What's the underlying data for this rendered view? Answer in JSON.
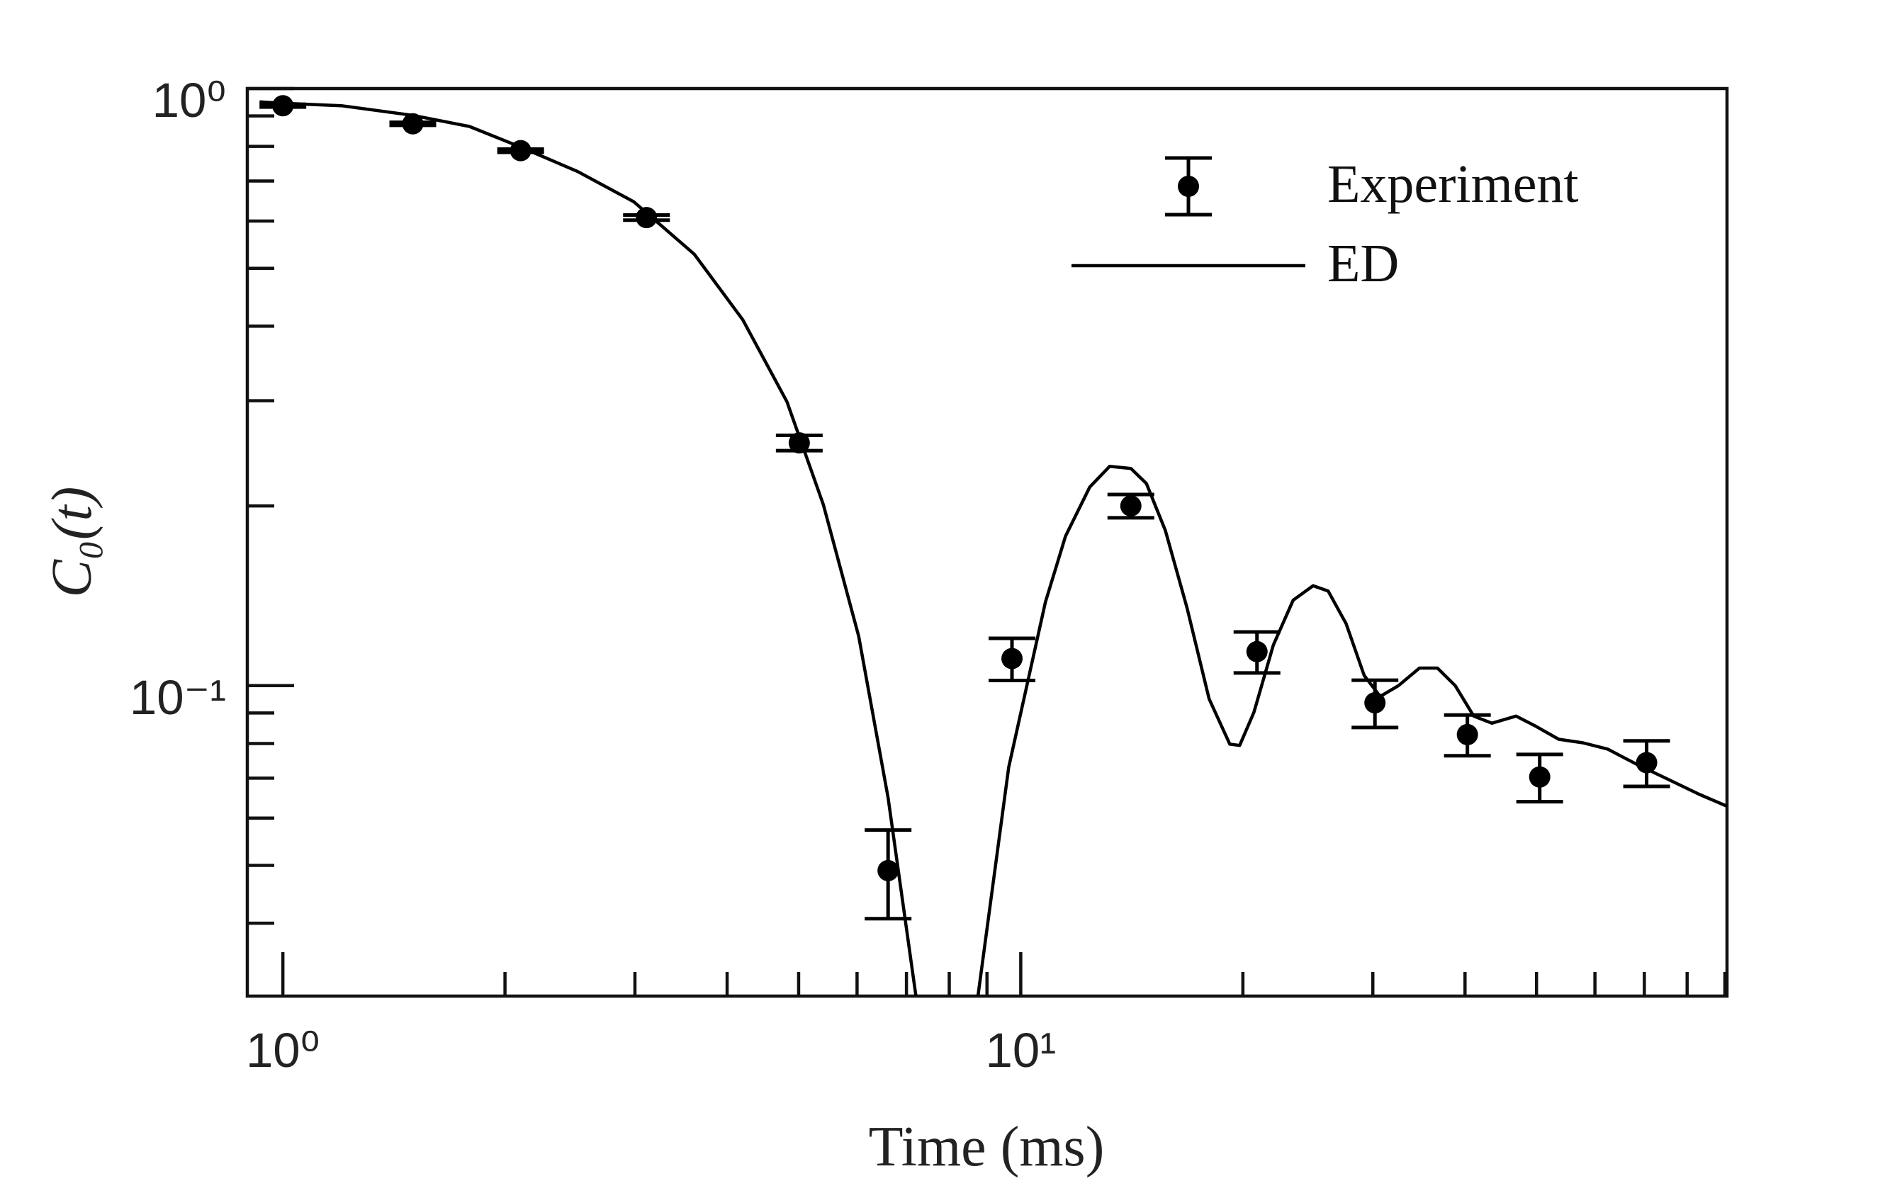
{
  "chart_data": {
    "type": "line",
    "xlabel": "Time (ms)",
    "ylabel": "C₀(t)",
    "xscale": "log",
    "yscale": "log",
    "xlim": [
      0.895,
      90.6
    ],
    "ylim": [
      0.0302,
      1
    ],
    "xticks": [
      {
        "value": 1,
        "label": "10⁰"
      },
      {
        "value": 10,
        "label": "10¹"
      }
    ],
    "yticks": [
      {
        "value": 0.1,
        "label": "10⁻¹"
      },
      {
        "value": 1,
        "label": "10⁰"
      }
    ],
    "xminor": [
      2,
      3,
      4,
      5,
      6,
      7,
      8,
      9,
      20,
      30,
      40,
      50,
      60,
      70,
      80,
      90
    ],
    "yminor": [
      0.04,
      0.05,
      0.06,
      0.07,
      0.08,
      0.09,
      0.2,
      0.3,
      0.4,
      0.5,
      0.6,
      0.7,
      0.8,
      0.9
    ],
    "legend": "upper right",
    "series": [
      {
        "name": "Experiment",
        "type": "errorbar",
        "color": "#000000",
        "x": [
          1.0,
          1.5,
          2.1,
          3.11,
          5.01,
          6.61,
          9.73,
          14.1,
          20.9,
          30.2,
          40.3,
          50.5,
          70.5
        ],
        "values": [
          0.936,
          0.873,
          0.787,
          0.608,
          0.255,
          0.049,
          0.111,
          0.2,
          0.114,
          0.0936,
          0.0828,
          0.0703,
          0.0743
        ],
        "errors": [
          0.005,
          0.005,
          0.005,
          0.006,
          0.0075,
          0.0083,
          0.009,
          0.009,
          0.009,
          0.0085,
          0.0065,
          0.0064,
          0.0065
        ]
      },
      {
        "name": "ED",
        "type": "line",
        "color": "#000000",
        "x": [
          0.93,
          1.0,
          1.2,
          1.5,
          1.79,
          2.1,
          2.51,
          2.99,
          3.61,
          4.2,
          4.82,
          5.4,
          6.03,
          6.61,
          7.21,
          7.96,
          8.75,
          9.63,
          10.8,
          11.5,
          12.4,
          13.2,
          14.1,
          14.8,
          15.7,
          16.8,
          18.0,
          19.2,
          19.8,
          20.7,
          22.0,
          23.4,
          24.9,
          26.1,
          27.6,
          29.2,
          30.7,
          32.5,
          34.7,
          36.7,
          38.8,
          41.1,
          43.5,
          46.9,
          49.7,
          53.6,
          57.8,
          62.4,
          68.7,
          75.5,
          83.0,
          90.6
        ],
        "values": [
          0.95,
          0.945,
          0.936,
          0.902,
          0.864,
          0.798,
          0.726,
          0.646,
          0.528,
          0.41,
          0.299,
          0.201,
          0.121,
          0.0649,
          0.0302,
          0.012,
          0.0302,
          0.073,
          0.138,
          0.178,
          0.215,
          0.233,
          0.231,
          0.218,
          0.182,
          0.135,
          0.095,
          0.0798,
          0.0794,
          0.0902,
          0.117,
          0.139,
          0.147,
          0.144,
          0.127,
          0.104,
          0.0959,
          0.1,
          0.107,
          0.107,
          0.1,
          0.0889,
          0.0865,
          0.0889,
          0.0857,
          0.0813,
          0.0802,
          0.0783,
          0.0736,
          0.0696,
          0.0658,
          0.0628
        ]
      }
    ]
  }
}
